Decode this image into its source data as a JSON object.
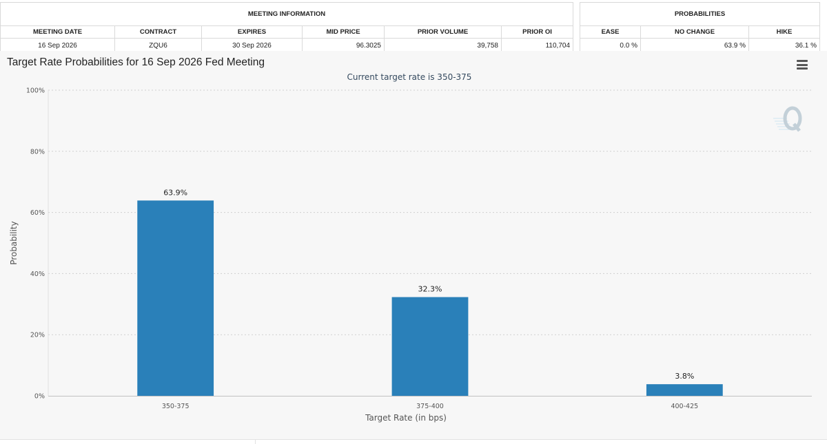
{
  "meeting_info": {
    "group_label": "MEETING INFORMATION",
    "headers": [
      "MEETING DATE",
      "CONTRACT",
      "EXPIRES",
      "MID PRICE",
      "PRIOR VOLUME",
      "PRIOR OI"
    ],
    "row": [
      "16 Sep 2026",
      "ZQU6",
      "30 Sep 2026",
      "96.3025",
      "39,758",
      "110,704"
    ]
  },
  "probabilities": {
    "group_label": "PROBABILITIES",
    "headers": [
      "EASE",
      "NO CHANGE",
      "HIKE"
    ],
    "row": [
      "0.0 %",
      "63.9 %",
      "36.1 %"
    ]
  },
  "chart_data": {
    "type": "bar",
    "title": "Target Rate Probabilities for 16 Sep 2026 Fed Meeting",
    "subtitle": "Current target rate is 350-375",
    "xlabel": "Target Rate (in bps)",
    "ylabel": "Probability",
    "categories": [
      "350-375",
      "375-400",
      "400-425"
    ],
    "values": [
      63.9,
      32.3,
      3.8
    ],
    "data_labels": [
      "63.9%",
      "32.3%",
      "3.8%"
    ],
    "ylim": [
      0,
      100
    ],
    "yticks": [
      0,
      20,
      40,
      60,
      80,
      100
    ],
    "ytick_labels": [
      "0%",
      "20%",
      "40%",
      "60%",
      "80%",
      "100%"
    ],
    "grid": "dotted horizontal",
    "bar_color": "#2a80b9",
    "legend": "none"
  },
  "icons": {
    "menu": "hamburger-menu-icon",
    "watermark": "quikstrike-logo-icon"
  }
}
